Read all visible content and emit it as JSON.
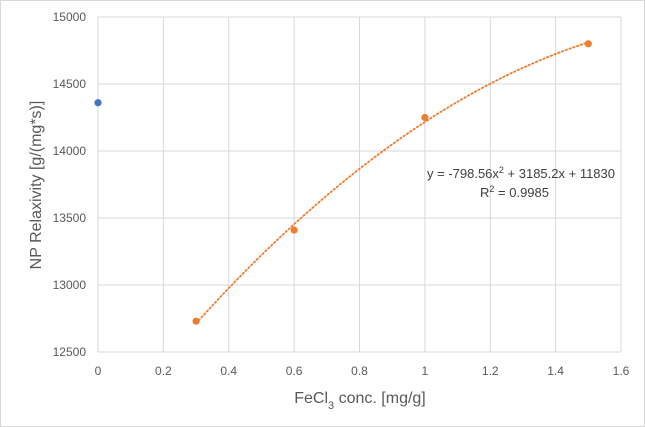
{
  "chart_data": {
    "type": "scatter",
    "title": "",
    "xlabel": "FeCl3 conc. [mg/g]",
    "xlabel_parts": {
      "pre": "FeCl",
      "sub": "3",
      "post": " conc. [mg/g]"
    },
    "ylabel": "NP Relaxivity  [g/(mg*s)]",
    "xlim": [
      0,
      1.6
    ],
    "ylim": [
      12500,
      15000
    ],
    "xticks": [
      0,
      0.2,
      0.4,
      0.6,
      0.8,
      1,
      1.2,
      1.4,
      1.6
    ],
    "yticks": [
      12500,
      13000,
      13500,
      14000,
      14500,
      15000
    ],
    "grid": true,
    "series": [
      {
        "color": "#4472c4",
        "x": [
          0
        ],
        "y": [
          14360
        ]
      },
      {
        "color": "#ed7d31",
        "x": [
          0.3,
          0.6,
          1.0,
          1.5
        ],
        "y": [
          12730,
          13410,
          14250,
          14800
        ]
      }
    ],
    "trendline": {
      "type": "polynomial",
      "color": "#ed7d31",
      "coefficients": [
        -798.56,
        3185.2,
        11830
      ],
      "x_range": [
        0.3,
        1.5
      ]
    },
    "annotations": {
      "equation": {
        "pre": "y = -798.56x",
        "sup": "2",
        "post": " + 3185.2x + 11830"
      },
      "r_squared": {
        "pre": "R",
        "sup": "2",
        "post": " = 0.9985"
      }
    }
  }
}
